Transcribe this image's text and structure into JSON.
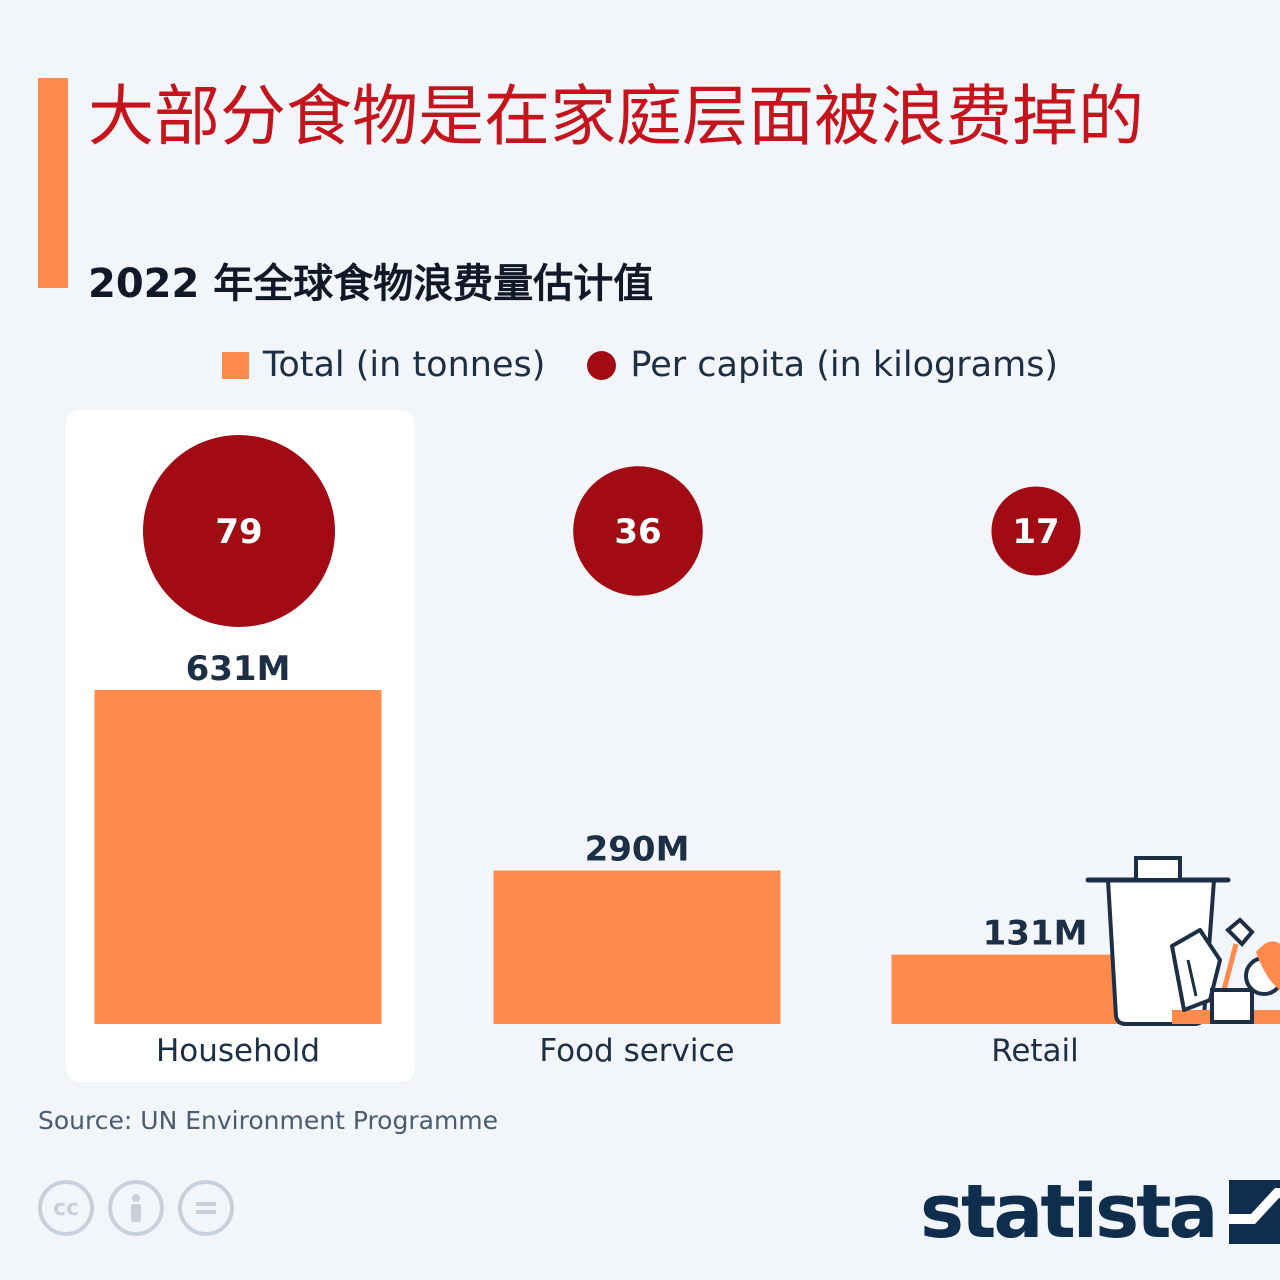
{
  "header": {
    "title": "大部分食物是在家庭层面被浪费掉的",
    "subtitle": "2022 年全球食物浪费量估计值"
  },
  "legend": {
    "total_label": "Total (in tonnes)",
    "per_capita_label": "Per capita (in kilograms)"
  },
  "colors": {
    "accent": "#ff8a4c",
    "bar": "#ff8a4c",
    "bubble": "#a30b14",
    "title": "#c5141c",
    "value_label": "#1d2f45",
    "highlight_panel": "#ffffff"
  },
  "chart_data": {
    "type": "bar",
    "categories": [
      "Household",
      "Food service",
      "Retail"
    ],
    "series": [
      {
        "name": "Total (in tonnes)",
        "values": [
          631,
          290,
          131
        ],
        "labels": [
          "631M",
          "290M",
          "131M"
        ],
        "mark": "bar"
      },
      {
        "name": "Per capita (in kilograms)",
        "values": [
          79,
          36,
          17
        ],
        "labels": [
          "79",
          "36",
          "17"
        ],
        "mark": "bubble"
      }
    ],
    "highlighted_category": "Household",
    "grid": false,
    "legend_position": "top"
  },
  "footer": {
    "source_label": "Source:",
    "source_text": "UN Environment Programme",
    "brand": "statista",
    "license_icons": [
      "cc-icon",
      "by-attribution-icon",
      "no-derivatives-icon"
    ]
  }
}
